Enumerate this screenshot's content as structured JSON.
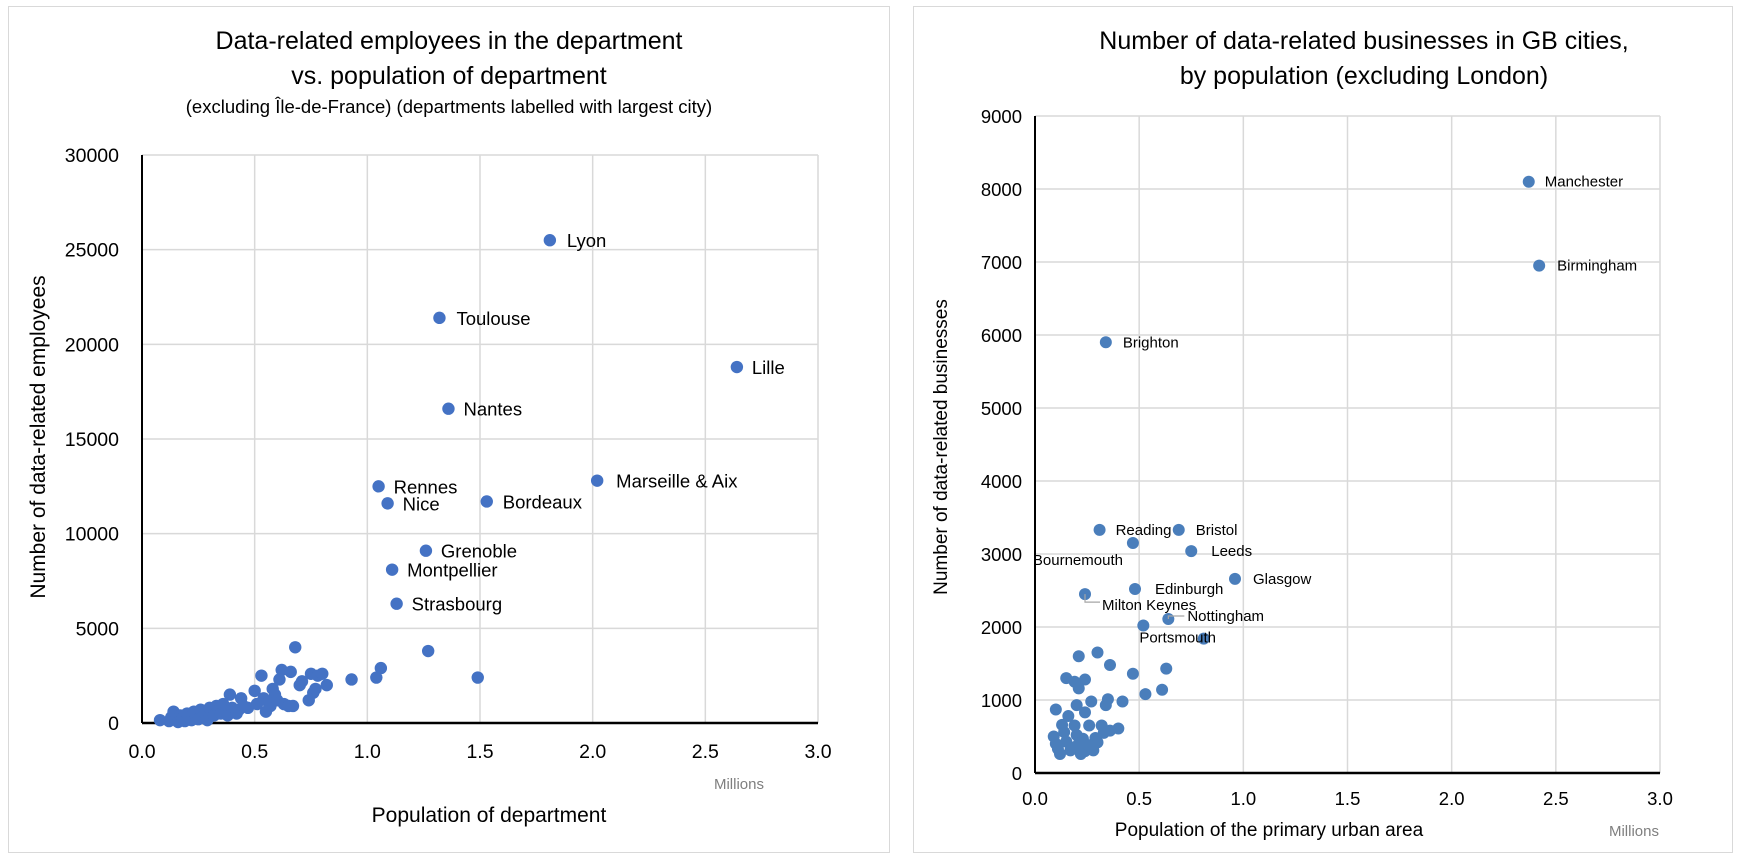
{
  "chart_data": [
    {
      "type": "scatter",
      "title": "Data-related employees in the department",
      "title_line2": "vs. population of department",
      "subtitle": "(excluding Île-de-France) (departments labelled with largest city)",
      "xlabel": "Population of department",
      "x_unit_label": "Millions",
      "ylabel": "Number of data-related employees",
      "xlim": [
        0,
        3.0
      ],
      "ylim": [
        0,
        30000
      ],
      "x_ticks": [
        "0.0",
        "0.5",
        "1.0",
        "1.5",
        "2.0",
        "2.5",
        "3.0"
      ],
      "y_ticks": [
        "0",
        "5000",
        "10000",
        "15000",
        "20000",
        "25000",
        "30000"
      ],
      "grid": true,
      "marker_color": "#4472C4",
      "labelled_points": [
        {
          "label": "Lyon",
          "x": 1.81,
          "y": 25500
        },
        {
          "label": "Toulouse",
          "x": 1.32,
          "y": 21400
        },
        {
          "label": "Lille",
          "x": 2.64,
          "y": 18800
        },
        {
          "label": "Nantes",
          "x": 1.36,
          "y": 16600
        },
        {
          "label": "Marseille & Aix",
          "x": 2.02,
          "y": 12800
        },
        {
          "label": "Rennes",
          "x": 1.05,
          "y": 12500
        },
        {
          "label": "Bordeaux",
          "x": 1.53,
          "y": 11700
        },
        {
          "label": "Nice",
          "x": 1.09,
          "y": 11600
        },
        {
          "label": "Grenoble",
          "x": 1.26,
          "y": 9100
        },
        {
          "label": "Montpellier",
          "x": 1.11,
          "y": 8100
        },
        {
          "label": "Strasbourg",
          "x": 1.13,
          "y": 6300
        }
      ],
      "points": [
        [
          0.08,
          150
        ],
        [
          0.12,
          100
        ],
        [
          0.13,
          300
        ],
        [
          0.14,
          600
        ],
        [
          0.15,
          200
        ],
        [
          0.16,
          50
        ],
        [
          0.17,
          400
        ],
        [
          0.18,
          250
        ],
        [
          0.19,
          100
        ],
        [
          0.2,
          500
        ],
        [
          0.21,
          300
        ],
        [
          0.22,
          150
        ],
        [
          0.23,
          600
        ],
        [
          0.24,
          400
        ],
        [
          0.25,
          200
        ],
        [
          0.26,
          700
        ],
        [
          0.27,
          350
        ],
        [
          0.28,
          500
        ],
        [
          0.29,
          150
        ],
        [
          0.3,
          800
        ],
        [
          0.31,
          600
        ],
        [
          0.32,
          400
        ],
        [
          0.33,
          900
        ],
        [
          0.34,
          700
        ],
        [
          0.35,
          500
        ],
        [
          0.36,
          1000
        ],
        [
          0.37,
          600
        ],
        [
          0.38,
          400
        ],
        [
          0.39,
          1500
        ],
        [
          0.4,
          800
        ],
        [
          0.41,
          600
        ],
        [
          0.42,
          500
        ],
        [
          0.43,
          700
        ],
        [
          0.44,
          1300
        ],
        [
          0.45,
          900
        ],
        [
          0.47,
          800
        ],
        [
          0.5,
          1700
        ],
        [
          0.51,
          1000
        ],
        [
          0.53,
          2500
        ],
        [
          0.54,
          1300
        ],
        [
          0.55,
          600
        ],
        [
          0.56,
          1100
        ],
        [
          0.57,
          900
        ],
        [
          0.58,
          1800
        ],
        [
          0.59,
          1500
        ],
        [
          0.6,
          1200
        ],
        [
          0.61,
          2300
        ],
        [
          0.62,
          2800
        ],
        [
          0.63,
          1000
        ],
        [
          0.65,
          900
        ],
        [
          0.66,
          2700
        ],
        [
          0.67,
          900
        ],
        [
          0.68,
          4000
        ],
        [
          0.7,
          2000
        ],
        [
          0.71,
          2200
        ],
        [
          0.74,
          1200
        ],
        [
          0.75,
          2600
        ],
        [
          0.76,
          1600
        ],
        [
          0.77,
          1800
        ],
        [
          0.78,
          2500
        ],
        [
          0.8,
          2600
        ],
        [
          0.82,
          2000
        ],
        [
          0.93,
          2300
        ],
        [
          1.04,
          2400
        ],
        [
          1.06,
          2900
        ],
        [
          1.27,
          3800
        ],
        [
          1.49,
          2400
        ]
      ]
    },
    {
      "type": "scatter",
      "title": "Number of data-related businesses in GB cities,",
      "title_line2": "by population (excluding London)",
      "xlabel": "Population of the primary urban area",
      "x_unit_label": "Millions",
      "ylabel": "Number of data-related businesses",
      "xlim": [
        0,
        3.0
      ],
      "ylim": [
        0,
        9000
      ],
      "x_ticks": [
        "0.0",
        "0.5",
        "1.0",
        "1.5",
        "2.0",
        "2.5",
        "3.0"
      ],
      "y_ticks": [
        "0",
        "1000",
        "2000",
        "3000",
        "4000",
        "5000",
        "6000",
        "7000",
        "8000",
        "9000"
      ],
      "grid": true,
      "marker_color": "#4A7EBB",
      "labelled_points": [
        {
          "label": "Manchester",
          "x": 2.37,
          "y": 8100
        },
        {
          "label": "Birmingham",
          "x": 2.42,
          "y": 6950
        },
        {
          "label": "Brighton",
          "x": 0.34,
          "y": 5900
        },
        {
          "label": "Reading",
          "x": 0.31,
          "y": 3330
        },
        {
          "label": "Bristol",
          "x": 0.69,
          "y": 3330
        },
        {
          "label": "Bournemouth",
          "x": 0.47,
          "y": 3150
        },
        {
          "label": "Leeds",
          "x": 0.75,
          "y": 3040
        },
        {
          "label": "Glasgow",
          "x": 0.96,
          "y": 2660
        },
        {
          "label": "Edinburgh",
          "x": 0.48,
          "y": 2520
        },
        {
          "label": "Milton Keynes",
          "x": 0.24,
          "y": 2450
        },
        {
          "label": "Nottingham",
          "x": 0.64,
          "y": 2110
        },
        {
          "label": "Portsmouth",
          "x": 0.52,
          "y": 2020
        }
      ],
      "unlabelled_extra": [
        [
          0.81,
          1840
        ]
      ],
      "points": [
        [
          0.21,
          1600
        ],
        [
          0.3,
          1650
        ],
        [
          0.36,
          1480
        ],
        [
          0.15,
          1300
        ],
        [
          0.24,
          1280
        ],
        [
          0.47,
          1360
        ],
        [
          0.63,
          1430
        ],
        [
          0.19,
          1250
        ],
        [
          0.1,
          870
        ],
        [
          0.21,
          1160
        ],
        [
          0.42,
          980
        ],
        [
          0.61,
          1140
        ],
        [
          0.53,
          1080
        ],
        [
          0.2,
          930
        ],
        [
          0.27,
          980
        ],
        [
          0.34,
          930
        ],
        [
          0.35,
          1010
        ],
        [
          0.16,
          780
        ],
        [
          0.24,
          830
        ],
        [
          0.4,
          610
        ],
        [
          0.13,
          660
        ],
        [
          0.19,
          650
        ],
        [
          0.26,
          650
        ],
        [
          0.32,
          650
        ],
        [
          0.36,
          580
        ],
        [
          0.09,
          500
        ],
        [
          0.14,
          560
        ],
        [
          0.2,
          520
        ],
        [
          0.23,
          470
        ],
        [
          0.29,
          480
        ],
        [
          0.1,
          400
        ],
        [
          0.15,
          430
        ],
        [
          0.21,
          400
        ],
        [
          0.11,
          330
        ],
        [
          0.17,
          310
        ],
        [
          0.24,
          300
        ],
        [
          0.28,
          310
        ],
        [
          0.12,
          260
        ],
        [
          0.22,
          260
        ],
        [
          0.3,
          420
        ],
        [
          0.33,
          550
        ],
        [
          0.18,
          350
        ],
        [
          0.26,
          380
        ]
      ]
    }
  ]
}
